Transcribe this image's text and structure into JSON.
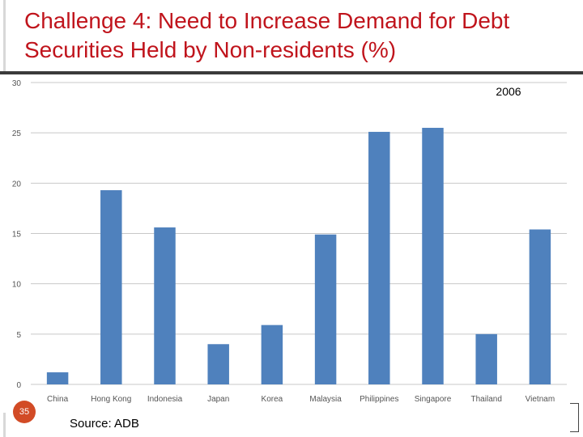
{
  "slide": {
    "title": "Challenge 4: Need to Increase Demand for Debt Securities Held by Non-residents (%)",
    "page_number": "35",
    "source": "Source: ADB",
    "accent_color": "#c0141c",
    "badge_color": "#d24b26"
  },
  "chart_data": {
    "type": "bar",
    "title": "",
    "annotation": "2006",
    "xlabel": "",
    "ylabel": "",
    "categories": [
      "China",
      "Hong Kong",
      "Indonesia",
      "Japan",
      "Korea",
      "Malaysia",
      "Philippines",
      "Singapore",
      "Thailand",
      "Vietnam"
    ],
    "values": [
      1.2,
      19.3,
      15.6,
      4.0,
      5.9,
      14.9,
      25.1,
      25.5,
      5.0,
      15.4
    ],
    "ylim": [
      0,
      30
    ],
    "yticks": [
      0,
      5,
      10,
      15,
      20,
      25,
      30
    ],
    "bar_color": "#4f81bd",
    "grid": true,
    "legend": "none"
  }
}
